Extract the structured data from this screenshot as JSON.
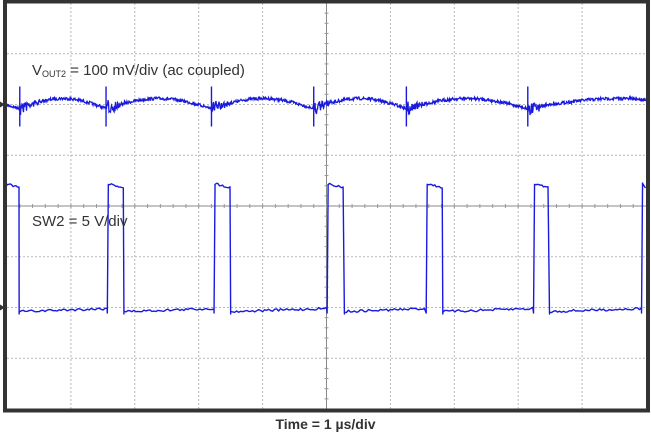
{
  "chart_data": {
    "type": "line",
    "title": "",
    "xlabel": "Time = 1 µs/div",
    "ylabel": "",
    "grid": true,
    "x_divisions": 10,
    "y_divisions": 8,
    "x_unit": "µs",
    "x_range": [
      0,
      10
    ],
    "legend_position": "inline",
    "series": [
      {
        "name": "VOUT2",
        "label_main": "V",
        "label_sub": "OUT2",
        "label_rest": " = 100 mV/div (ac coupled)",
        "scale": "100 mV/div",
        "coupling": "ac",
        "color": "#1a1adf",
        "ground_marker_div": 2.0,
        "description": "ripple ~ ±0.2 div around marker, spikes at each switching edge",
        "switching_edges_us": [
          0.2,
          1.55,
          3.2,
          4.8,
          6.25,
          8.15
        ]
      },
      {
        "name": "SW2",
        "label": "SW2 = 5 V/div",
        "scale": "5 V/div",
        "color": "#1a1adf",
        "ground_marker_div": 6.0,
        "high_level_div": 3.6,
        "low_level_div": 6.05,
        "pulses_us": [
          {
            "rise": 0.0,
            "fall": 0.19
          },
          {
            "rise": 1.57,
            "fall": 1.83
          },
          {
            "rise": 3.24,
            "fall": 3.5
          },
          {
            "rise": 5.01,
            "fall": 5.28
          },
          {
            "rise": 6.56,
            "fall": 6.82
          },
          {
            "rise": 8.24,
            "fall": 8.49
          },
          {
            "rise": 9.93,
            "fall": 10.0
          }
        ],
        "period_us": 1.67,
        "high_approx_V": 12.2,
        "low_approx_V": -0.25
      }
    ]
  },
  "labels": {
    "vout_main": "V",
    "vout_sub": "OUT2",
    "vout_rest": " = 100 mV/div (ac coupled)",
    "sw": "SW2 = 5 V/div",
    "time": "Time = 1 µs/div"
  },
  "colors": {
    "trace": "#1a1adf",
    "frame": "#333333",
    "grid": "#b8b8b8",
    "background": "#ffffff"
  }
}
